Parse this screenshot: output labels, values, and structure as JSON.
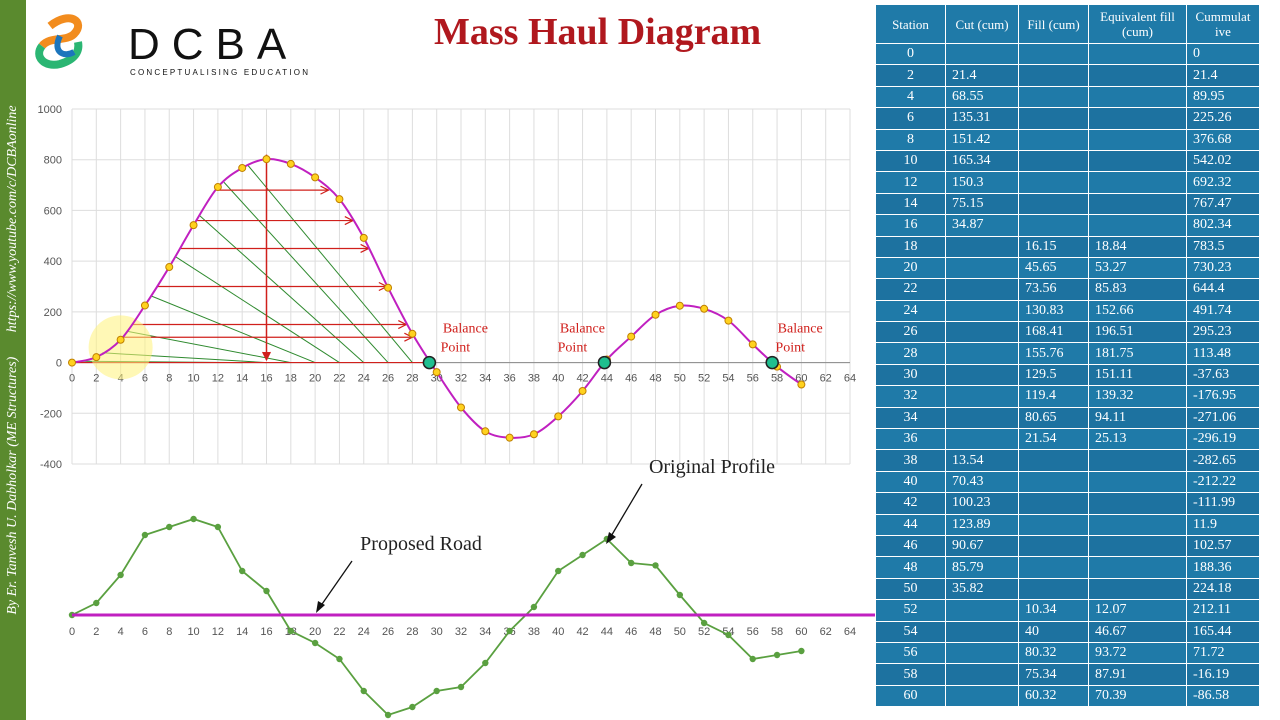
{
  "sidebar": {
    "url": "https://www.youtube.com/c/DCBAonline",
    "author": "By Er. Tanvesh U. Dabholkar (ME Structures)"
  },
  "logo": {
    "brand": "DCBA",
    "tagline": "CONCEPTUALISING EDUCATION"
  },
  "title": "Mass Haul Diagram",
  "colors": {
    "title": "#b0181e",
    "curve": "#c020c0",
    "marker_fill": "#ffd21f",
    "balance_fill": "#1fbf8f",
    "profile": "#5aa040",
    "road": "#c020c0",
    "table_bg": "#1f7aa8",
    "annotation": "#d0201c",
    "hatch": "#2f8a2f"
  },
  "table": {
    "headers": [
      "Station",
      "Cut (cum)",
      "Fill (cum)",
      "Equivalent fill (cum)",
      "Cummulat ive"
    ],
    "rows": [
      [
        "0",
        "",
        "",
        "",
        "0"
      ],
      [
        "2",
        "21.4",
        "",
        "",
        "21.4"
      ],
      [
        "4",
        "68.55",
        "",
        "",
        "89.95"
      ],
      [
        "6",
        "135.31",
        "",
        "",
        "225.26"
      ],
      [
        "8",
        "151.42",
        "",
        "",
        "376.68"
      ],
      [
        "10",
        "165.34",
        "",
        "",
        "542.02"
      ],
      [
        "12",
        "150.3",
        "",
        "",
        "692.32"
      ],
      [
        "14",
        "75.15",
        "",
        "",
        "767.47"
      ],
      [
        "16",
        "34.87",
        "",
        "",
        "802.34"
      ],
      [
        "18",
        "",
        "16.15",
        "18.84",
        "783.5"
      ],
      [
        "20",
        "",
        "45.65",
        "53.27",
        "730.23"
      ],
      [
        "22",
        "",
        "73.56",
        "85.83",
        "644.4"
      ],
      [
        "24",
        "",
        "130.83",
        "152.66",
        "491.74"
      ],
      [
        "26",
        "",
        "168.41",
        "196.51",
        "295.23"
      ],
      [
        "28",
        "",
        "155.76",
        "181.75",
        "113.48"
      ],
      [
        "30",
        "",
        "129.5",
        "151.11",
        "-37.63"
      ],
      [
        "32",
        "",
        "119.4",
        "139.32",
        "-176.95"
      ],
      [
        "34",
        "",
        "80.65",
        "94.11",
        "-271.06"
      ],
      [
        "36",
        "",
        "21.54",
        "25.13",
        "-296.19"
      ],
      [
        "38",
        "13.54",
        "",
        "",
        "-282.65"
      ],
      [
        "40",
        "70.43",
        "",
        "",
        "-212.22"
      ],
      [
        "42",
        "100.23",
        "",
        "",
        "-111.99"
      ],
      [
        "44",
        "123.89",
        "",
        "",
        "11.9"
      ],
      [
        "46",
        "90.67",
        "",
        "",
        "102.57"
      ],
      [
        "48",
        "85.79",
        "",
        "",
        "188.36"
      ],
      [
        "50",
        "35.82",
        "",
        "",
        "224.18"
      ],
      [
        "52",
        "",
        "10.34",
        "12.07",
        "212.11"
      ],
      [
        "54",
        "",
        "40",
        "46.67",
        "165.44"
      ],
      [
        "56",
        "",
        "80.32",
        "93.72",
        "71.72"
      ],
      [
        "58",
        "",
        "75.34",
        "87.91",
        "-16.19"
      ],
      [
        "60",
        "",
        "60.32",
        "70.39",
        "-86.58"
      ]
    ]
  },
  "chart_data": [
    {
      "type": "line",
      "x": [
        0,
        2,
        4,
        6,
        8,
        10,
        12,
        14,
        16,
        18,
        20,
        22,
        24,
        26,
        28,
        30,
        32,
        34,
        36,
        38,
        40,
        42,
        44,
        46,
        48,
        50,
        52,
        54,
        56,
        58,
        60
      ],
      "series": [
        {
          "values": [
            0,
            21.4,
            89.95,
            225.26,
            376.68,
            542.02,
            692.32,
            767.47,
            802.34,
            783.5,
            730.23,
            644.4,
            491.74,
            295.23,
            113.48,
            -37.63,
            -176.95,
            -271.06,
            -296.19,
            -282.65,
            -212.22,
            -111.99,
            11.9,
            102.57,
            188.36,
            224.18,
            212.11,
            165.44,
            71.72,
            -16.19,
            -86.58
          ]
        }
      ],
      "xlim": [
        0,
        64
      ],
      "xticks": [
        "0",
        "2",
        "4",
        "6",
        "8",
        "10",
        "12",
        "14",
        "16",
        "18",
        "20",
        "22",
        "24",
        "26",
        "28",
        "30",
        "32",
        "34",
        "36",
        "38",
        "40",
        "42",
        "44",
        "46",
        "48",
        "50",
        "52",
        "54",
        "56",
        "58",
        "60",
        "62",
        "64"
      ],
      "ylim": [
        -400,
        1000
      ],
      "yticks": [
        "-400",
        "-200",
        "0",
        "200",
        "400",
        "600",
        "800",
        "1000"
      ],
      "grid": true,
      "annotations": [
        {
          "text": "Balance Point",
          "x": 29.4
        },
        {
          "text": "Balance Point",
          "x": 43.8
        },
        {
          "text": "Balance Point",
          "x": 57.6
        }
      ]
    },
    {
      "type": "line",
      "x": [
        0,
        2,
        4,
        6,
        8,
        10,
        12,
        14,
        16,
        18,
        20,
        22,
        24,
        26,
        28,
        30,
        32,
        34,
        36,
        38,
        40,
        42,
        44,
        46,
        48,
        50,
        52,
        54,
        56,
        58,
        60
      ],
      "series": [
        {
          "name": "Original Profile",
          "values": [
            0,
            0.15,
            0.5,
            1.0,
            1.1,
            1.2,
            1.1,
            0.55,
            0.3,
            -0.2,
            -0.35,
            -0.55,
            -0.95,
            -1.25,
            -1.15,
            -0.95,
            -0.9,
            -0.6,
            -0.2,
            0.1,
            0.55,
            0.75,
            0.95,
            0.65,
            0.62,
            0.25,
            -0.1,
            -0.25,
            -0.55,
            -0.5,
            -0.45
          ]
        },
        {
          "name": "Proposed Road",
          "values": [
            0,
            0,
            0,
            0,
            0,
            0,
            0,
            0,
            0,
            0,
            0,
            0,
            0,
            0,
            0,
            0,
            0,
            0,
            0,
            0,
            0,
            0,
            0,
            0,
            0,
            0,
            0,
            0,
            0,
            0,
            0
          ]
        }
      ],
      "xlim": [
        0,
        64
      ],
      "xticks": [
        "0",
        "2",
        "4",
        "6",
        "8",
        "10",
        "12",
        "14",
        "16",
        "18",
        "20",
        "22",
        "24",
        "26",
        "28",
        "30",
        "32",
        "34",
        "36",
        "38",
        "40",
        "42",
        "44",
        "46",
        "48",
        "50",
        "52",
        "54",
        "56",
        "58",
        "60",
        "62",
        "64"
      ]
    }
  ]
}
